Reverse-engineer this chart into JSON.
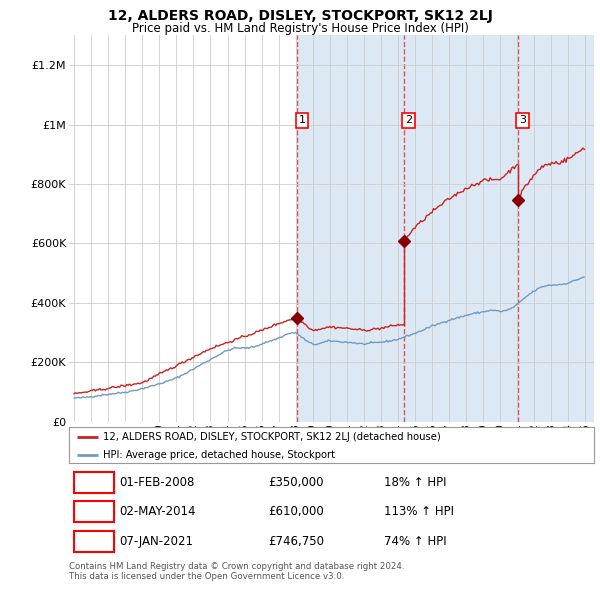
{
  "title": "12, ALDERS ROAD, DISLEY, STOCKPORT, SK12 2LJ",
  "subtitle": "Price paid vs. HM Land Registry's House Price Index (HPI)",
  "legend_label_red": "12, ALDERS ROAD, DISLEY, STOCKPORT, SK12 2LJ (detached house)",
  "legend_label_blue": "HPI: Average price, detached house, Stockport",
  "footnote1": "Contains HM Land Registry data © Crown copyright and database right 2024.",
  "footnote2": "This data is licensed under the Open Government Licence v3.0.",
  "sales": [
    {
      "num": 1,
      "date": "01-FEB-2008",
      "price": 350000,
      "hpi_pct": "18%",
      "year": 2008.08
    },
    {
      "num": 2,
      "date": "02-MAY-2014",
      "price": 610000,
      "hpi_pct": "113%",
      "year": 2014.33
    },
    {
      "num": 3,
      "date": "07-JAN-2021",
      "price": 746750,
      "hpi_pct": "74%",
      "year": 2021.02
    }
  ],
  "sale_marker_color": "#880000",
  "line_red_color": "#cc2222",
  "line_blue_color": "#7799bb",
  "shade_color": "#dce9f5",
  "vline_color": "#dd4444",
  "background_color": "#ffffff",
  "grid_color": "#cccccc",
  "ylim": [
    0,
    1300000
  ],
  "xlim": [
    1994.7,
    2025.5
  ],
  "ylabel_fontsize": 8,
  "xlabel_fontsize": 7,
  "title_fontsize": 10,
  "subtitle_fontsize": 8.5
}
